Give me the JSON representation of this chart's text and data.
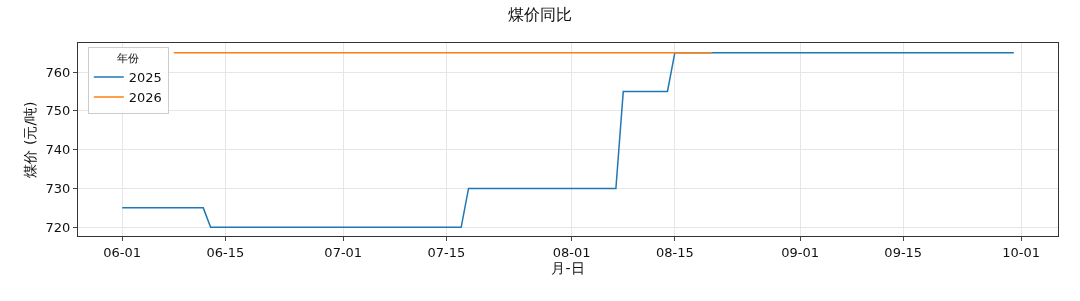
{
  "chart_data": {
    "type": "line",
    "title": "煤价同比",
    "xlabel": "月-日",
    "ylabel": "煤价 (元/吨)",
    "legend_title": "年份",
    "series": [
      {
        "name": "2025",
        "color": "#1f77b4",
        "x": [
          "--06-01",
          "--06-12",
          "--06-13",
          "--07-17",
          "--07-18",
          "--08-07",
          "--08-08",
          "--08-14",
          "--08-15",
          "--09-30"
        ],
        "values": [
          725,
          725,
          720,
          720,
          730,
          730,
          755,
          755,
          765,
          765
        ]
      },
      {
        "name": "2026",
        "color": "#ff7f0e",
        "x": [
          "--06-08",
          "--08-20"
        ],
        "values": [
          765,
          765
        ]
      }
    ],
    "xlim": [
      "--05-26",
      "--10-06"
    ],
    "xticks": [
      {
        "value": "--06-01",
        "label": "06-01"
      },
      {
        "value": "--06-15",
        "label": "06-15"
      },
      {
        "value": "--07-01",
        "label": "07-01"
      },
      {
        "value": "--07-15",
        "label": "07-15"
      },
      {
        "value": "--08-01",
        "label": "08-01"
      },
      {
        "value": "--08-15",
        "label": "08-15"
      },
      {
        "value": "--09-01",
        "label": "09-01"
      },
      {
        "value": "--09-15",
        "label": "09-15"
      },
      {
        "value": "--10-01",
        "label": "10-01"
      }
    ],
    "ylim": [
      717.75,
      767.5
    ],
    "yticks": [
      720,
      730,
      740,
      750,
      760
    ],
    "grid": true,
    "legend": "top left",
    "marker": "none",
    "line_style": "solid"
  }
}
